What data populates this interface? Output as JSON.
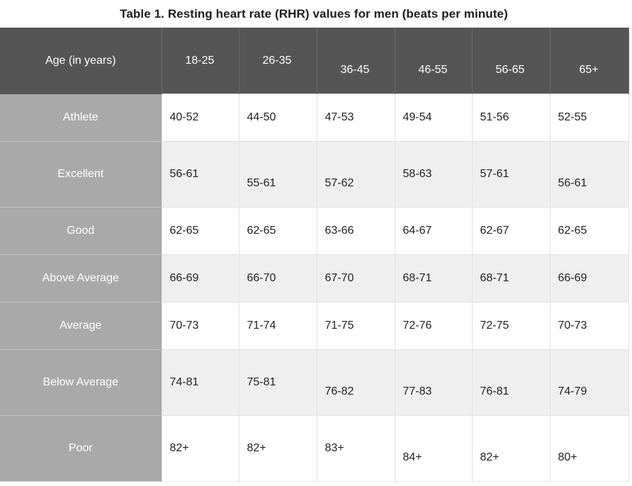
{
  "table": {
    "title": "Table 1. Resting heart rate (RHR) values for men (beats per minute)",
    "header": {
      "row_label": "Age (in years)",
      "columns": [
        "18-25",
        "26-35",
        "36-45",
        "46-55",
        "56-65",
        "65+"
      ]
    },
    "rows": [
      {
        "label": "Athlete",
        "values": [
          "40-52",
          "44-50",
          "47-53",
          "49-54",
          "51-56",
          "52-55"
        ]
      },
      {
        "label": "Excellent",
        "values": [
          "56-61",
          "55-61",
          "57-62",
          "58-63",
          "57-61",
          "56-61"
        ]
      },
      {
        "label": "Good",
        "values": [
          "62-65",
          "62-65",
          "63-66",
          "64-67",
          "62-67",
          "62-65"
        ]
      },
      {
        "label": "Above Average",
        "values": [
          "66-69",
          "66-70",
          "67-70",
          "68-71",
          "68-71",
          "66-69"
        ]
      },
      {
        "label": "Average",
        "values": [
          "70-73",
          "71-74",
          "71-75",
          "72-76",
          "72-75",
          "70-73"
        ]
      },
      {
        "label": "Below Average",
        "values": [
          "74-81",
          "75-81",
          "76-82",
          "77-83",
          "76-81",
          "74-79"
        ]
      },
      {
        "label": "Poor",
        "values": [
          "82+",
          "82+",
          "83+",
          "84+",
          "82+",
          "80+"
        ]
      }
    ]
  },
  "colors": {
    "header_bg": "#555555",
    "label_bg": "#a9a9a9",
    "row_alt_bg": "#efefef"
  }
}
